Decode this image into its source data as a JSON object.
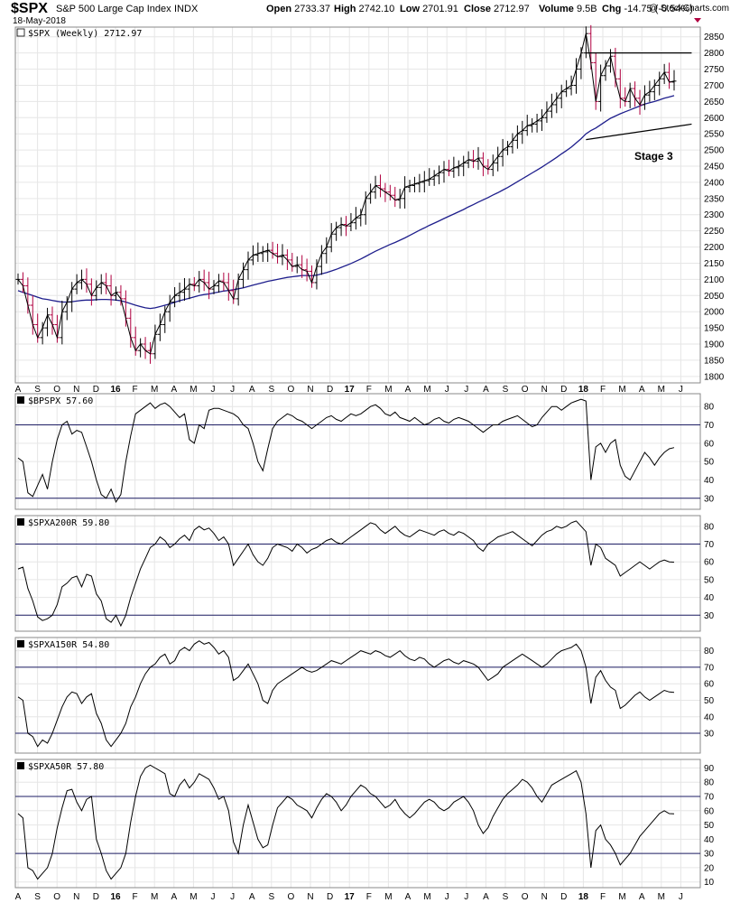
{
  "header": {
    "symbol": "$SPX",
    "name": "S&P 500 Large Cap Index",
    "exchange": "INDX",
    "date": "18-May-2018",
    "watermark": "@ StockCharts.com",
    "stats": [
      {
        "label": "Open",
        "value": "2733.37"
      },
      {
        "label": "High",
        "value": "2742.10"
      },
      {
        "label": "Low",
        "value": "2701.91"
      },
      {
        "label": "Close",
        "value": "2712.97"
      },
      {
        "label": "Volume",
        "value": "9.5B"
      },
      {
        "label": "Chg",
        "value": "-14.75 (-0.54%)"
      }
    ]
  },
  "colors": {
    "up": "#000000",
    "down": "#b00040",
    "ma": "#1e1e8c",
    "grid": "#e6e6e6",
    "refline": "#1e1e64",
    "line": "#000000"
  },
  "chart_data": [
    {
      "type": "ohlc",
      "legend": "$SPX (Weekly) 2712.97",
      "annotation": "Stage 3",
      "ylim": [
        1780,
        2880
      ],
      "yticks": [
        1800,
        1850,
        1900,
        1950,
        2000,
        2050,
        2100,
        2150,
        2200,
        2250,
        2300,
        2350,
        2400,
        2450,
        2500,
        2550,
        2600,
        2650,
        2700,
        2750,
        2800,
        2850
      ],
      "x_labels": [
        "A",
        "S",
        "O",
        "N",
        "D",
        "16",
        "F",
        "M",
        "A",
        "M",
        "J",
        "J",
        "A",
        "S",
        "O",
        "N",
        "D",
        "17",
        "F",
        "M",
        "A",
        "M",
        "J",
        "J",
        "A",
        "S",
        "O",
        "N",
        "D",
        "18",
        "F",
        "M",
        "A",
        "M",
        "J"
      ],
      "close": [
        2100,
        2080,
        2020,
        1960,
        1920,
        1950,
        1990,
        1960,
        1920,
        2000,
        2030,
        2070,
        2090,
        2100,
        2085,
        2050,
        2075,
        2090,
        2080,
        2050,
        2060,
        2040,
        1980,
        1920,
        1880,
        1900,
        1880,
        1870,
        1930,
        1960,
        2000,
        2030,
        2050,
        2060,
        2070,
        2085,
        2080,
        2100,
        2090,
        2070,
        2080,
        2095,
        2090,
        2065,
        2040,
        2100,
        2130,
        2160,
        2175,
        2180,
        2185,
        2190,
        2180,
        2170,
        2175,
        2160,
        2140,
        2145,
        2130,
        2125,
        2090,
        2140,
        2180,
        2200,
        2240,
        2260,
        2270,
        2265,
        2275,
        2290,
        2300,
        2350,
        2370,
        2390,
        2380,
        2370,
        2360,
        2345,
        2350,
        2385,
        2390,
        2395,
        2400,
        2405,
        2410,
        2420,
        2430,
        2440,
        2435,
        2445,
        2450,
        2460,
        2470,
        2465,
        2475,
        2450,
        2440,
        2460,
        2480,
        2500,
        2510,
        2530,
        2550,
        2560,
        2575,
        2580,
        2590,
        2600,
        2620,
        2640,
        2660,
        2680,
        2690,
        2700,
        2750,
        2800,
        2860,
        2770,
        2650,
        2730,
        2760,
        2790,
        2720,
        2660,
        2650,
        2690,
        2660,
        2640,
        2670,
        2680,
        2700,
        2720,
        2740,
        2710,
        2713
      ],
      "ma30": [
        2065,
        2060,
        2055,
        2050,
        2045,
        2040,
        2038,
        2035,
        2032,
        2030,
        2030,
        2031,
        2033,
        2035,
        2036,
        2036,
        2037,
        2038,
        2038,
        2037,
        2036,
        2034,
        2030,
        2025,
        2020,
        2016,
        2012,
        2010,
        2012,
        2016,
        2020,
        2024,
        2029,
        2034,
        2038,
        2042,
        2046,
        2050,
        2053,
        2055,
        2058,
        2061,
        2064,
        2066,
        2068,
        2071,
        2074,
        2078,
        2082,
        2086,
        2090,
        2094,
        2097,
        2100,
        2103,
        2106,
        2108,
        2110,
        2112,
        2112,
        2111,
        2113,
        2117,
        2121,
        2126,
        2131,
        2137,
        2143,
        2149,
        2156,
        2163,
        2171,
        2179,
        2187,
        2194,
        2201,
        2208,
        2214,
        2221,
        2228,
        2236,
        2244,
        2252,
        2259,
        2267,
        2274,
        2281,
        2288,
        2295,
        2302,
        2309,
        2316,
        2324,
        2331,
        2339,
        2346,
        2353,
        2361,
        2368,
        2376,
        2384,
        2393,
        2402,
        2411,
        2420,
        2429,
        2438,
        2447,
        2457,
        2467,
        2477,
        2488,
        2498,
        2509,
        2522,
        2535,
        2550,
        2560,
        2568,
        2578,
        2588,
        2598,
        2605,
        2612,
        2618,
        2624,
        2630,
        2636,
        2642,
        2646,
        2650,
        2655,
        2660,
        2664,
        2668
      ]
    },
    {
      "type": "line",
      "legend": "$BPSPX 57.60",
      "ylim": [
        24,
        87
      ],
      "yticks": [
        30,
        40,
        50,
        60,
        70,
        80
      ],
      "refs": [
        30,
        70
      ],
      "values": [
        52,
        50,
        33,
        31,
        37,
        43,
        35,
        50,
        62,
        70,
        72,
        65,
        67,
        66,
        58,
        50,
        40,
        32,
        30,
        35,
        28,
        32,
        50,
        64,
        76,
        78,
        80,
        82,
        79,
        81,
        82,
        80,
        77,
        74,
        76,
        62,
        60,
        70,
        68,
        78,
        79,
        79,
        78,
        77,
        76,
        74,
        70,
        68,
        60,
        50,
        45,
        57,
        68,
        72,
        74,
        76,
        75,
        73,
        72,
        70,
        68,
        70,
        72,
        74,
        75,
        73,
        72,
        74,
        76,
        75,
        76,
        78,
        80,
        81,
        79,
        76,
        75,
        77,
        74,
        73,
        72,
        74,
        72,
        70,
        71,
        73,
        74,
        72,
        71,
        73,
        74,
        73,
        72,
        70,
        68,
        66,
        68,
        70,
        70,
        72,
        73,
        74,
        75,
        73,
        71,
        69,
        70,
        74,
        77,
        80,
        80,
        78,
        80,
        82,
        83,
        84,
        83,
        40,
        58,
        60,
        55,
        60,
        62,
        48,
        42,
        40,
        45,
        50,
        55,
        52,
        48,
        52,
        55,
        57,
        57.6
      ]
    },
    {
      "type": "line",
      "legend": "$SPXA200R 59.80",
      "ylim": [
        21,
        86
      ],
      "yticks": [
        30,
        40,
        50,
        60,
        70,
        80
      ],
      "refs": [
        30,
        70
      ],
      "values": [
        56,
        57,
        45,
        38,
        29,
        27,
        28,
        30,
        36,
        46,
        48,
        51,
        52,
        46,
        53,
        52,
        42,
        38,
        28,
        26,
        30,
        24,
        30,
        40,
        48,
        56,
        62,
        68,
        70,
        74,
        72,
        68,
        70,
        73,
        75,
        72,
        78,
        80,
        78,
        79,
        76,
        72,
        74,
        70,
        58,
        62,
        66,
        70,
        64,
        60,
        58,
        62,
        68,
        70,
        69,
        68,
        66,
        70,
        68,
        65,
        67,
        68,
        70,
        72,
        73,
        71,
        70,
        72,
        74,
        76,
        78,
        80,
        82,
        81,
        78,
        76,
        78,
        80,
        77,
        75,
        74,
        76,
        78,
        77,
        76,
        75,
        77,
        78,
        76,
        75,
        77,
        76,
        74,
        72,
        68,
        66,
        70,
        72,
        74,
        75,
        76,
        77,
        75,
        73,
        71,
        69,
        72,
        75,
        77,
        78,
        80,
        79,
        80,
        82,
        83,
        80,
        77,
        58,
        70,
        68,
        62,
        60,
        58,
        52,
        54,
        56,
        58,
        60,
        58,
        56,
        58,
        60,
        61,
        60,
        59.8
      ]
    },
    {
      "type": "line",
      "legend": "$SPXA150R 54.80",
      "ylim": [
        18,
        88
      ],
      "yticks": [
        30,
        40,
        50,
        60,
        70,
        80
      ],
      "refs": [
        30,
        70
      ],
      "values": [
        52,
        50,
        30,
        28,
        22,
        26,
        24,
        30,
        38,
        46,
        52,
        55,
        54,
        48,
        52,
        54,
        42,
        36,
        26,
        22,
        26,
        30,
        36,
        46,
        52,
        60,
        66,
        70,
        72,
        76,
        78,
        72,
        74,
        80,
        82,
        80,
        84,
        86,
        84,
        85,
        82,
        78,
        80,
        76,
        62,
        64,
        68,
        72,
        66,
        60,
        50,
        48,
        56,
        60,
        62,
        64,
        66,
        68,
        70,
        68,
        67,
        68,
        70,
        72,
        74,
        73,
        72,
        74,
        76,
        78,
        80,
        79,
        78,
        80,
        79,
        77,
        76,
        78,
        80,
        77,
        75,
        74,
        76,
        75,
        72,
        70,
        72,
        74,
        75,
        73,
        72,
        74,
        73,
        72,
        70,
        66,
        62,
        64,
        66,
        70,
        72,
        74,
        76,
        78,
        76,
        74,
        72,
        70,
        72,
        75,
        78,
        80,
        81,
        82,
        84,
        80,
        70,
        48,
        64,
        68,
        62,
        58,
        56,
        45,
        47,
        50,
        53,
        55,
        52,
        50,
        52,
        54,
        56,
        55,
        54.8
      ]
    },
    {
      "type": "line",
      "legend": "$SPXA50R 57.80",
      "ylim": [
        6,
        96
      ],
      "yticks": [
        10,
        20,
        30,
        40,
        50,
        60,
        70,
        80,
        90
      ],
      "refs": [
        30,
        70
      ],
      "values": [
        58,
        55,
        20,
        18,
        12,
        16,
        20,
        30,
        48,
        62,
        74,
        75,
        66,
        60,
        68,
        70,
        40,
        30,
        18,
        12,
        16,
        20,
        30,
        52,
        70,
        84,
        90,
        92,
        90,
        88,
        86,
        72,
        70,
        78,
        82,
        76,
        80,
        86,
        84,
        82,
        76,
        68,
        70,
        60,
        38,
        30,
        50,
        64,
        52,
        40,
        34,
        36,
        50,
        62,
        66,
        70,
        68,
        64,
        62,
        60,
        55,
        62,
        68,
        72,
        70,
        66,
        60,
        64,
        70,
        74,
        78,
        76,
        72,
        70,
        66,
        62,
        64,
        68,
        62,
        58,
        55,
        58,
        62,
        66,
        68,
        66,
        62,
        60,
        62,
        66,
        68,
        70,
        66,
        60,
        50,
        44,
        48,
        56,
        62,
        68,
        72,
        75,
        78,
        82,
        80,
        76,
        70,
        66,
        72,
        78,
        80,
        82,
        84,
        86,
        88,
        80,
        58,
        20,
        46,
        50,
        40,
        36,
        30,
        22,
        26,
        30,
        36,
        42,
        46,
        50,
        54,
        58,
        60,
        58,
        57.8
      ]
    }
  ]
}
